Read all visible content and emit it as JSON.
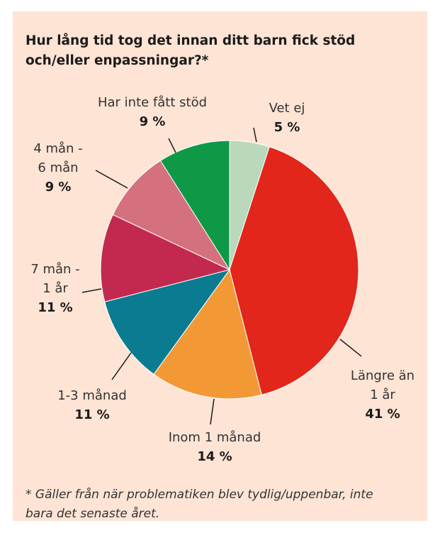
{
  "chart_data": {
    "type": "pie",
    "title": "Hur lång tid tog det innan ditt barn fick stöd och/eller enpassningar?*",
    "categories": [
      "Vet ej",
      "Längre än\n1 år",
      "Inom 1 månad",
      "1-3 månad",
      "7 mån -\n1 år",
      "4 mån -\n6 mån",
      "Har inte fått stöd"
    ],
    "values": [
      5,
      41,
      14,
      11,
      11,
      9,
      9
    ],
    "value_labels": [
      "5 %",
      "41 %",
      "14 %",
      "11 %",
      "11 %",
      "9 %",
      "9 %"
    ],
    "colors": [
      "#bad8bc",
      "#e2261b",
      "#f29936",
      "#0a7b90",
      "#c3294f",
      "#d5707f",
      "#0f9947"
    ],
    "footnote": "* Gäller från när problematiken blev tydlig/uppenbar, inte bara det senaste året."
  }
}
